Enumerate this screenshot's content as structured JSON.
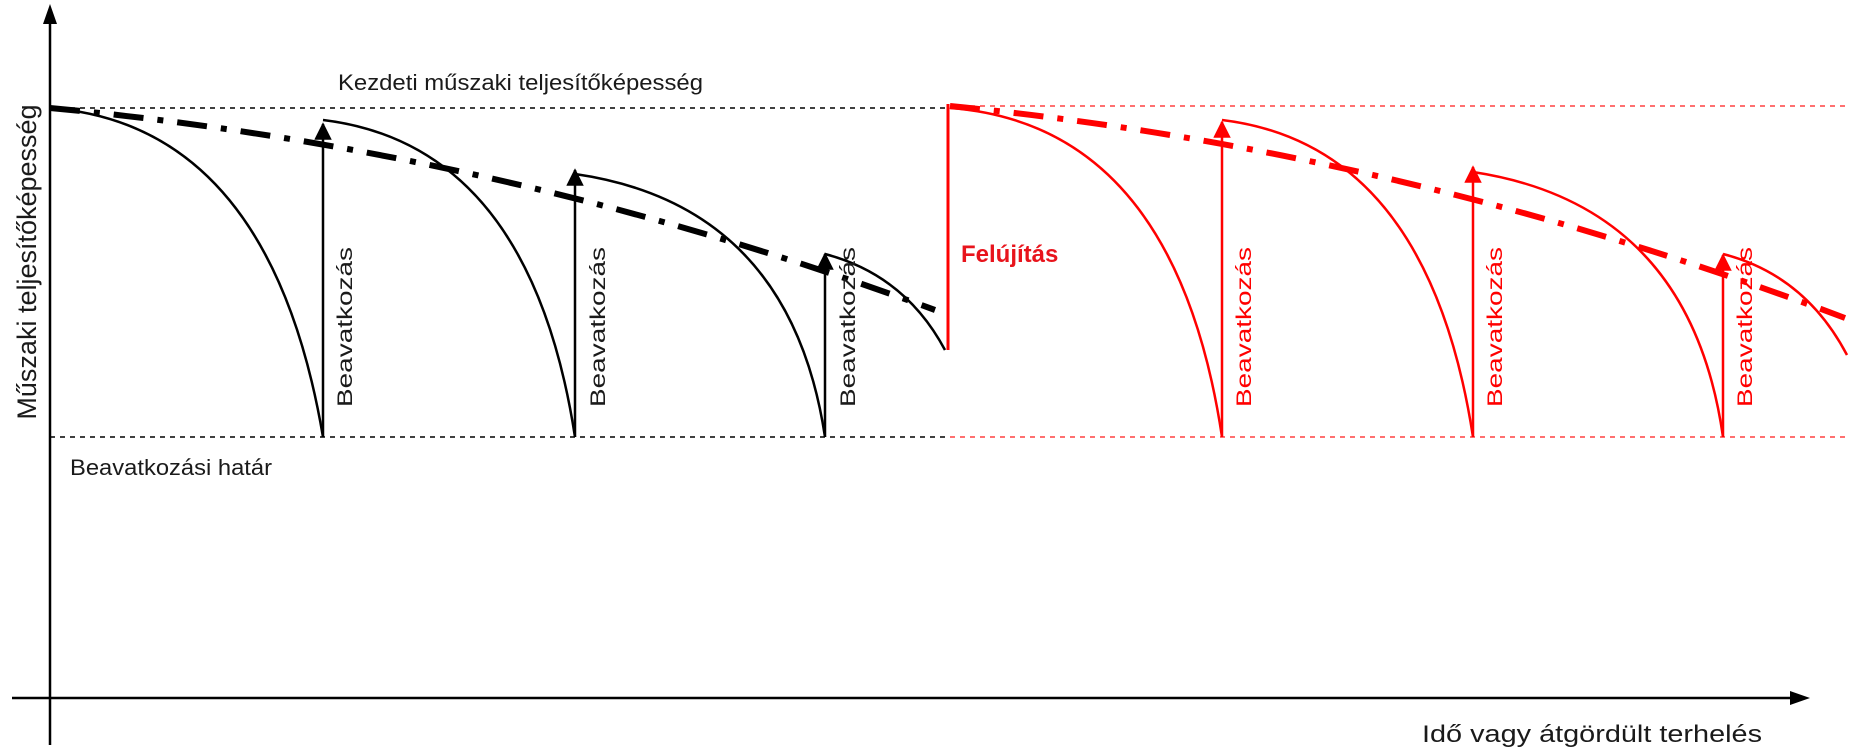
{
  "diagram": {
    "y_axis_label": "Műszaki teljesítőképesség",
    "x_axis_label": "Idő vagy átgördült terhelés",
    "initial_level_label": "Kezdeti műszaki teljesítőképesség",
    "limit_label": "Beavatkozási határ",
    "renewal_label": "Felújítás",
    "intervention_label": "Beavatkozás",
    "colors": {
      "original_cycle": "#000000",
      "renewed_cycle": "#ff0000",
      "axes": "#000000",
      "renewal_text": "#e8141c"
    }
  }
}
